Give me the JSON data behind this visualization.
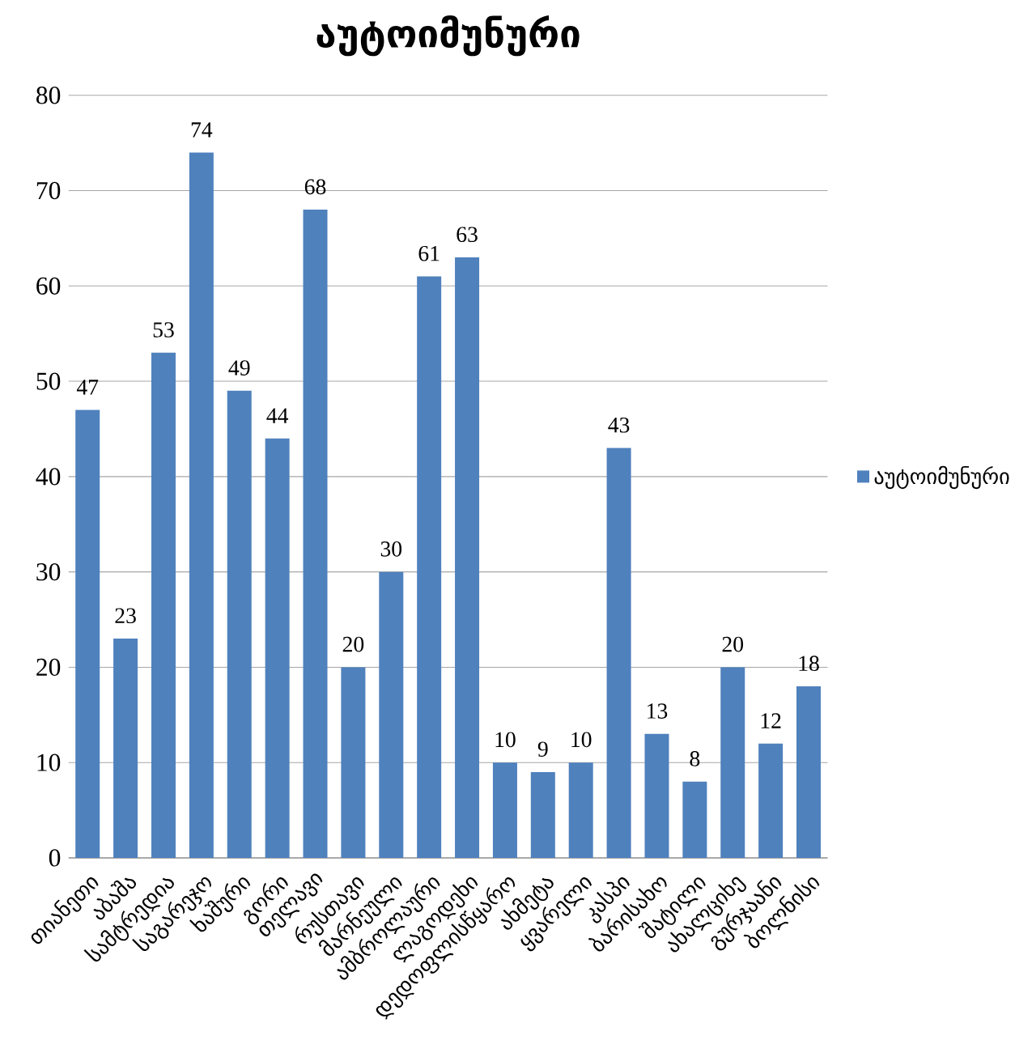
{
  "chart_data": {
    "type": "bar",
    "title": "აუტოიმუნური",
    "categories": [
      "თიანეთი",
      "აბაშა",
      "სამტრედია",
      "საგარეჯო",
      "ხაშური",
      "გორი",
      "თელავი",
      "რუსთავი",
      "მარნეული",
      "ამბროლაური",
      "ლაგოდეხი",
      "დედოფლისწყარო",
      "ახმეტა",
      "ყვარელი",
      "კასპი",
      "ბარისახო",
      "შატილი",
      "ახალციხე",
      "გურჯაანი",
      "ბოლნისი"
    ],
    "series": [
      {
        "name": "აუტოიმუნური",
        "color": "#4f81bd",
        "values": [
          47,
          23,
          53,
          74,
          49,
          44,
          68,
          20,
          30,
          61,
          63,
          10,
          9,
          10,
          43,
          13,
          8,
          20,
          12,
          18
        ]
      }
    ],
    "ylim": [
      0,
      80
    ],
    "yticks": [
      0,
      10,
      20,
      30,
      40,
      50,
      60,
      70,
      80
    ],
    "grid": "y",
    "legend": "right",
    "data_labels": true
  }
}
